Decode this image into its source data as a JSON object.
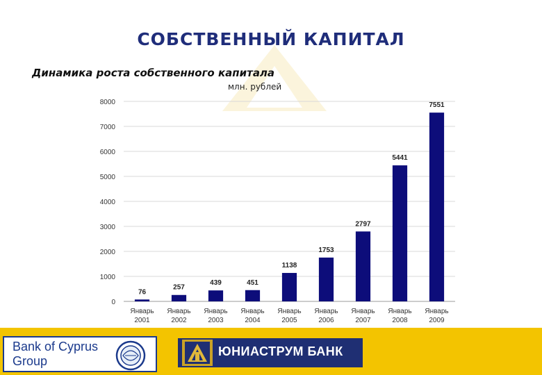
{
  "header": {
    "title": "СОБСТВЕННЫЙ КАПИТАЛ",
    "subtitle": "Динамика роста собственного капитала",
    "units": "млн. рублей"
  },
  "chart_data": {
    "type": "bar",
    "title": "",
    "xlabel": "",
    "ylabel": "",
    "ylim": [
      0,
      8000
    ],
    "yticks": [
      0,
      1000,
      2000,
      3000,
      4000,
      5000,
      6000,
      7000,
      8000
    ],
    "grid": true,
    "legend": "none",
    "bar_color": "#0d0d7a",
    "categories": [
      [
        "Январь",
        "2001"
      ],
      [
        "Январь",
        "2002"
      ],
      [
        "Январь",
        "2003"
      ],
      [
        "Январь",
        "2004"
      ],
      [
        "Январь",
        "2005"
      ],
      [
        "Январь",
        "2006"
      ],
      [
        "Январь",
        "2007"
      ],
      [
        "Январь",
        "2008"
      ],
      [
        "Январь",
        "2009"
      ]
    ],
    "values": [
      76,
      257,
      439,
      451,
      1138,
      1753,
      2797,
      5441,
      7551
    ]
  },
  "footer": {
    "left_logo_text": [
      "Bank of Cyprus",
      "Group"
    ],
    "right_logo_text": "ЮНИАСТРУМ БАНК",
    "colors": {
      "band": "#f3c400",
      "navy": "#1f2f73"
    }
  }
}
